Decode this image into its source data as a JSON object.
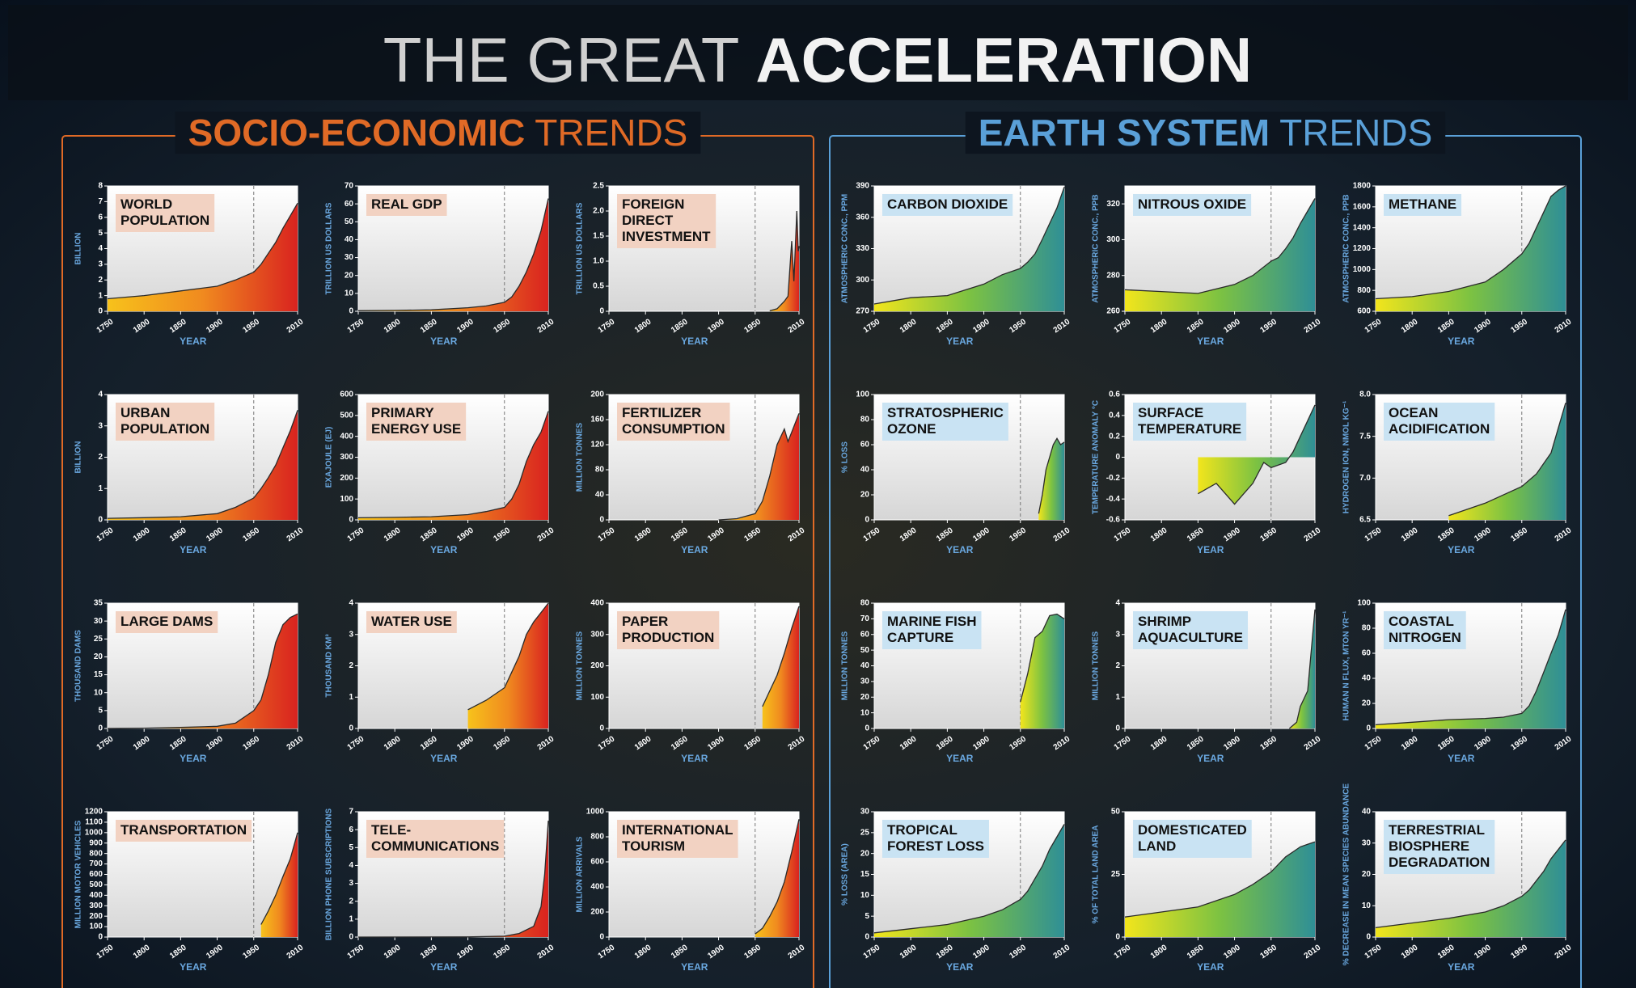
{
  "title_light": "THE GREAT",
  "title_bold": "ACCELERATION",
  "xlabel": "YEAR",
  "xlim": [
    1750,
    2010
  ],
  "xticks": [
    1750,
    1800,
    1850,
    1900,
    1950,
    2010
  ],
  "reference_year": 1950,
  "highlight_color": "#e8212a",
  "sections": [
    {
      "bold": "SOCIO-ECONOMIC",
      "light": "TRENDS",
      "color": "#e06a26",
      "box_color": "#f2d2c2",
      "gradient": [
        "#f7c21b",
        "#f08a1f",
        "#d9231f"
      ]
    },
    {
      "bold": "EARTH SYSTEM",
      "light": "TRENDS",
      "color": "#5aa0d8",
      "box_color": "#c9e3f3",
      "gradient": [
        "#f2e51c",
        "#7cc242",
        "#2f8f96"
      ]
    }
  ],
  "chart_data": [
    {
      "type": "area",
      "section": 0,
      "title": [
        "WORLD",
        "POPULATION"
      ],
      "ylabel": "BILLION",
      "ylim": [
        0,
        8
      ],
      "yticks": [
        0,
        1,
        2,
        3,
        4,
        5,
        6,
        7,
        8
      ],
      "x": [
        1750,
        1800,
        1850,
        1900,
        1925,
        1950,
        1960,
        1970,
        1980,
        1990,
        2000,
        2010
      ],
      "values": [
        0.8,
        1.0,
        1.3,
        1.6,
        2.0,
        2.5,
        3.0,
        3.7,
        4.4,
        5.3,
        6.1,
        6.9
      ]
    },
    {
      "type": "area",
      "section": 0,
      "title": [
        "REAL GDP"
      ],
      "ylabel": "TRILLION US DOLLARS",
      "ylim": [
        0,
        70
      ],
      "yticks": [
        0,
        10,
        20,
        30,
        40,
        50,
        60,
        70
      ],
      "x": [
        1750,
        1800,
        1850,
        1900,
        1925,
        1950,
        1960,
        1970,
        1980,
        1990,
        2000,
        2010
      ],
      "values": [
        0.3,
        0.5,
        0.8,
        2,
        3,
        5,
        8,
        14,
        22,
        32,
        45,
        63
      ]
    },
    {
      "type": "area",
      "section": 0,
      "title": [
        "FOREIGN",
        "DIRECT",
        "INVESTMENT"
      ],
      "ylabel": "TRILLION US DOLLARS",
      "ylim": [
        0,
        2.5
      ],
      "yticks": [
        0,
        0.5,
        {
          "value": 1,
          "label": "1.0"
        },
        1.5,
        {
          "value": 2,
          "label": "2.0"
        },
        2.5
      ],
      "x": [
        1970,
        1980,
        1990,
        1995,
        2000,
        2003,
        2007,
        2009,
        2010
      ],
      "values": [
        0.01,
        0.05,
        0.2,
        0.3,
        1.4,
        0.6,
        2.0,
        1.2,
        1.3
      ]
    },
    {
      "type": "area",
      "section": 0,
      "title": [
        "URBAN",
        "POPULATION"
      ],
      "ylabel": "BILLION",
      "ylim": [
        0,
        4
      ],
      "yticks": [
        0,
        1,
        2,
        3,
        4
      ],
      "x": [
        1750,
        1800,
        1850,
        1900,
        1925,
        1950,
        1960,
        1970,
        1980,
        1990,
        2000,
        2010
      ],
      "values": [
        0.05,
        0.07,
        0.1,
        0.2,
        0.4,
        0.7,
        1.0,
        1.35,
        1.75,
        2.3,
        2.85,
        3.5
      ]
    },
    {
      "type": "area",
      "section": 0,
      "title": [
        "PRIMARY",
        "ENERGY USE"
      ],
      "ylabel": "EXAJOULE (EJ)",
      "ylim": [
        0,
        600
      ],
      "yticks": [
        0,
        100,
        200,
        300,
        400,
        500,
        600
      ],
      "x": [
        1750,
        1800,
        1850,
        1900,
        1925,
        1950,
        1960,
        1970,
        1980,
        1990,
        2000,
        2010
      ],
      "values": [
        10,
        12,
        15,
        25,
        40,
        60,
        100,
        170,
        280,
        360,
        420,
        520
      ]
    },
    {
      "type": "area",
      "section": 0,
      "title": [
        "FERTILIZER",
        "CONSUMPTION"
      ],
      "ylabel": "MILLION TONNES",
      "ylim": [
        0,
        200
      ],
      "yticks": [
        0,
        40,
        80,
        120,
        160,
        200
      ],
      "x": [
        1900,
        1925,
        1950,
        1960,
        1970,
        1980,
        1990,
        1995,
        2000,
        2010
      ],
      "values": [
        0,
        2,
        10,
        30,
        70,
        120,
        145,
        125,
        140,
        170
      ]
    },
    {
      "type": "area",
      "section": 0,
      "title": [
        "LARGE DAMS"
      ],
      "ylabel": "THOUSAND DAMS",
      "ylim": [
        0,
        35
      ],
      "yticks": [
        0,
        5,
        10,
        15,
        20,
        25,
        30,
        35
      ],
      "x": [
        1750,
        1800,
        1850,
        1900,
        1925,
        1950,
        1960,
        1970,
        1980,
        1990,
        2000,
        2010
      ],
      "values": [
        0,
        0.1,
        0.3,
        0.6,
        1.5,
        5,
        8,
        15,
        24,
        29,
        31,
        32
      ]
    },
    {
      "type": "area",
      "section": 0,
      "title": [
        "WATER USE"
      ],
      "ylabel": "THOUSAND KM³",
      "ylim": [
        0,
        4
      ],
      "yticks": [
        0,
        1,
        2,
        3,
        4
      ],
      "x": [
        1900,
        1925,
        1950,
        1960,
        1970,
        1980,
        1990,
        2000,
        2010
      ],
      "values": [
        0.6,
        0.9,
        1.3,
        1.8,
        2.3,
        3.0,
        3.4,
        3.7,
        4.0
      ]
    },
    {
      "type": "area",
      "section": 0,
      "title": [
        "PAPER",
        "PRODUCTION"
      ],
      "ylabel": "MILLION TONNES",
      "ylim": [
        0,
        400
      ],
      "yticks": [
        0,
        100,
        200,
        300,
        400
      ],
      "x": [
        1960,
        1970,
        1980,
        1990,
        2000,
        2010
      ],
      "values": [
        70,
        120,
        170,
        240,
        320,
        390
      ]
    },
    {
      "type": "area",
      "section": 0,
      "title": [
        "TRANSPORTATION"
      ],
      "ylabel": "MILLION MOTOR VEHICLES",
      "ylim": [
        0,
        1200
      ],
      "yticks": [
        0,
        100,
        200,
        300,
        400,
        500,
        600,
        700,
        800,
        900,
        1000,
        1100,
        1200
      ],
      "x": [
        1960,
        1970,
        1980,
        1990,
        2000,
        2010
      ],
      "values": [
        120,
        250,
        400,
        580,
        750,
        1000
      ]
    },
    {
      "type": "area",
      "section": 0,
      "title": [
        "TELE-",
        "COMMUNICATIONS"
      ],
      "ylabel": "BILLION PHONE SUBSCRIPTIONS",
      "ylim": [
        0,
        7
      ],
      "yticks": [
        0,
        1,
        2,
        3,
        4,
        5,
        6,
        7
      ],
      "x": [
        1750,
        1900,
        1950,
        1970,
        1990,
        2000,
        2005,
        2010
      ],
      "values": [
        0,
        0.01,
        0.05,
        0.2,
        0.6,
        1.7,
        3.5,
        6.5
      ]
    },
    {
      "type": "area",
      "section": 0,
      "title": [
        "INTERNATIONAL",
        "TOURISM"
      ],
      "ylabel": "MILLION ARRIVALS",
      "ylim": [
        0,
        1000
      ],
      "yticks": [
        0,
        200,
        400,
        600,
        800,
        1000
      ],
      "x": [
        1950,
        1960,
        1970,
        1980,
        1990,
        2000,
        2010
      ],
      "values": [
        25,
        70,
        165,
        280,
        440,
        680,
        940
      ]
    },
    {
      "type": "area",
      "section": 1,
      "title": [
        "CARBON DIOXIDE"
      ],
      "ylabel": "ATMOSPHERIC CONC., PPM",
      "ylim": [
        270,
        390
      ],
      "yticks": [
        270,
        300,
        330,
        360,
        390
      ],
      "x": [
        1750,
        1800,
        1850,
        1900,
        1925,
        1950,
        1960,
        1970,
        1980,
        1990,
        2000,
        2010
      ],
      "values": [
        277,
        283,
        285,
        296,
        305,
        311,
        317,
        325,
        339,
        354,
        369,
        389
      ]
    },
    {
      "type": "area",
      "section": 1,
      "title": [
        "NITROUS OXIDE"
      ],
      "ylabel": "ATMOSPHERIC CONC., PPB",
      "ylim": [
        260,
        330
      ],
      "yticks": [
        260,
        280,
        300,
        320
      ],
      "x": [
        1750,
        1800,
        1850,
        1900,
        1925,
        1950,
        1960,
        1970,
        1980,
        1990,
        2000,
        2010
      ],
      "values": [
        272,
        271,
        270,
        275,
        280,
        288,
        290,
        295,
        301,
        309,
        316,
        323
      ]
    },
    {
      "type": "area",
      "section": 1,
      "title": [
        "METHANE"
      ],
      "ylabel": "ATMOSPHERIC CONC., PPB",
      "ylim": [
        600,
        1800
      ],
      "yticks": [
        600,
        800,
        1000,
        1200,
        1400,
        1600,
        1800
      ],
      "x": [
        1750,
        1800,
        1850,
        1900,
        1925,
        1950,
        1960,
        1970,
        1980,
        1990,
        2000,
        2010
      ],
      "values": [
        720,
        740,
        790,
        880,
        1000,
        1150,
        1250,
        1400,
        1550,
        1700,
        1760,
        1800
      ]
    },
    {
      "type": "area",
      "section": 1,
      "title": [
        "STRATOSPHERIC",
        "OZONE"
      ],
      "ylabel": "% LOSS",
      "ylim": [
        0,
        100
      ],
      "yticks": [
        0,
        20,
        40,
        60,
        80,
        100
      ],
      "x": [
        1975,
        1980,
        1985,
        1990,
        1995,
        2000,
        2005,
        2010
      ],
      "values": [
        5,
        20,
        40,
        50,
        60,
        65,
        60,
        62
      ]
    },
    {
      "type": "area",
      "section": 1,
      "title": [
        "SURFACE",
        "TEMPERATURE"
      ],
      "ylabel": "TEMPERATURE ANOMALY °C",
      "ylim": [
        -0.6,
        0.6
      ],
      "yticks": [
        -0.6,
        -0.4,
        -0.2,
        0,
        0.2,
        0.4,
        0.6
      ],
      "x": [
        1850,
        1875,
        1900,
        1925,
        1940,
        1950,
        1970,
        1980,
        1990,
        2000,
        2010
      ],
      "values": [
        -0.35,
        -0.25,
        -0.45,
        -0.25,
        -0.05,
        -0.1,
        -0.05,
        0.05,
        0.2,
        0.35,
        0.5
      ]
    },
    {
      "type": "area",
      "section": 1,
      "title": [
        "OCEAN",
        "ACIDIFICATION"
      ],
      "ylabel": "HYDROGEN ION, NMOL KG⁻¹",
      "ylim": [
        6.5,
        8
      ],
      "yticks": [
        6.5,
        {
          "value": 7,
          "label": "7.0"
        },
        7.5,
        {
          "value": 8,
          "label": "8.0"
        }
      ],
      "x": [
        1850,
        1900,
        1950,
        1970,
        1990,
        2010
      ],
      "values": [
        6.55,
        6.7,
        6.9,
        7.05,
        7.3,
        7.9
      ]
    },
    {
      "type": "area",
      "section": 1,
      "title": [
        "MARINE FISH",
        "CAPTURE"
      ],
      "ylabel": "MILLION TONNES",
      "ylim": [
        0,
        80
      ],
      "yticks": [
        0,
        10,
        20,
        30,
        40,
        50,
        60,
        70,
        80
      ],
      "x": [
        1950,
        1960,
        1970,
        1980,
        1990,
        2000,
        2010
      ],
      "values": [
        17,
        35,
        58,
        62,
        72,
        73,
        70
      ]
    },
    {
      "type": "area",
      "section": 1,
      "title": [
        "SHRIMP",
        "AQUACULTURE"
      ],
      "ylabel": "MILLION TONNES",
      "ylim": [
        0,
        4
      ],
      "yticks": [
        0,
        1,
        2,
        3,
        4
      ],
      "x": [
        1975,
        1985,
        1990,
        2000,
        2005,
        2010
      ],
      "values": [
        0,
        0.2,
        0.7,
        1.2,
        2.5,
        3.8
      ]
    },
    {
      "type": "area",
      "section": 1,
      "title": [
        "COASTAL",
        "NITROGEN"
      ],
      "ylabel": "HUMAN N FLUX, MTON YR⁻¹",
      "ylim": [
        0,
        100
      ],
      "yticks": [
        0,
        20,
        40,
        60,
        80,
        100
      ],
      "x": [
        1750,
        1800,
        1850,
        1900,
        1925,
        1950,
        1960,
        1970,
        1980,
        1990,
        2000,
        2010
      ],
      "values": [
        3,
        5,
        7,
        8,
        9,
        12,
        18,
        30,
        45,
        60,
        75,
        95
      ]
    },
    {
      "type": "area",
      "section": 1,
      "title": [
        "TROPICAL",
        "FOREST LOSS"
      ],
      "ylabel": "% LOSS (AREA)",
      "ylim": [
        0,
        30
      ],
      "yticks": [
        0,
        5,
        10,
        15,
        20,
        25,
        30
      ],
      "x": [
        1750,
        1800,
        1850,
        1900,
        1925,
        1950,
        1960,
        1970,
        1980,
        1990,
        2000,
        2010
      ],
      "values": [
        1,
        2,
        3,
        5,
        6.5,
        9,
        11,
        14,
        17,
        21,
        24,
        27
      ]
    },
    {
      "type": "area",
      "section": 1,
      "title": [
        "DOMESTICATED",
        "LAND"
      ],
      "ylabel": "% OF TOTAL LAND AREA",
      "ylim": [
        0,
        50
      ],
      "yticks": [
        0,
        25,
        50
      ],
      "x": [
        1750,
        1800,
        1850,
        1900,
        1925,
        1950,
        1960,
        1970,
        1980,
        1990,
        2000,
        2010
      ],
      "values": [
        8,
        10,
        12,
        17,
        21,
        26,
        29,
        32,
        34,
        36,
        37,
        38
      ]
    },
    {
      "type": "area",
      "section": 1,
      "title": [
        "TERRESTRIAL",
        "BIOSPHERE",
        "DEGRADATION"
      ],
      "ylabel": "% DECREASE IN MEAN SPECIES ABUNDANCE",
      "ylim": [
        0,
        40
      ],
      "yticks": [
        0,
        10,
        20,
        30,
        40
      ],
      "x": [
        1750,
        1800,
        1850,
        1900,
        1925,
        1950,
        1960,
        1970,
        1980,
        1990,
        2000,
        2010
      ],
      "values": [
        3,
        4.5,
        6,
        8,
        10,
        13,
        15,
        18,
        21,
        25,
        28,
        31
      ]
    }
  ]
}
